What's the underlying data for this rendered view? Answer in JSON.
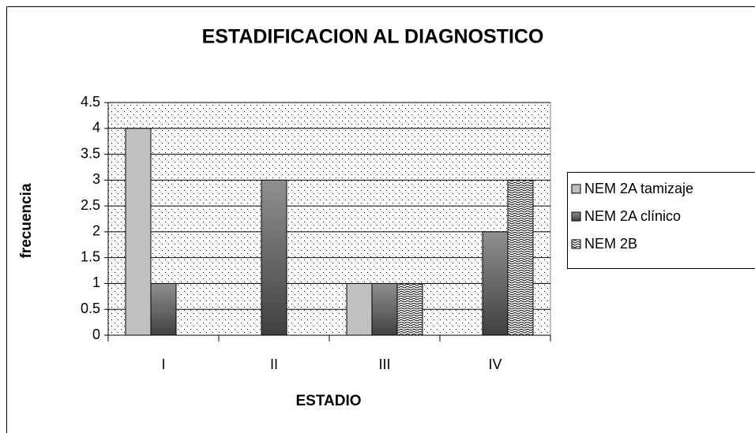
{
  "chart_data": {
    "type": "bar",
    "title": "ESTADIFICACION AL DIAGNOSTICO",
    "x_label": "ESTADIO",
    "y_label": "frecuencia",
    "categories": [
      "I",
      "II",
      "III",
      "IV"
    ],
    "series": [
      {
        "name": "NEM 2A tamizaje",
        "color": "#c0c0c0",
        "values": [
          4,
          0,
          1,
          0
        ]
      },
      {
        "name": "NEM 2A clínico",
        "color": "#404040",
        "values": [
          1,
          3,
          1,
          2
        ]
      },
      {
        "name": "NEM 2B",
        "color": "#ffffff",
        "pattern": "zigzag",
        "values": [
          0,
          0,
          1,
          3
        ]
      }
    ],
    "ylim": [
      0,
      4.5
    ],
    "yticks": [
      0,
      0.5,
      1,
      1.5,
      2,
      2.5,
      3,
      3.5,
      4,
      4.5
    ],
    "grid": true,
    "legend": "right"
  }
}
